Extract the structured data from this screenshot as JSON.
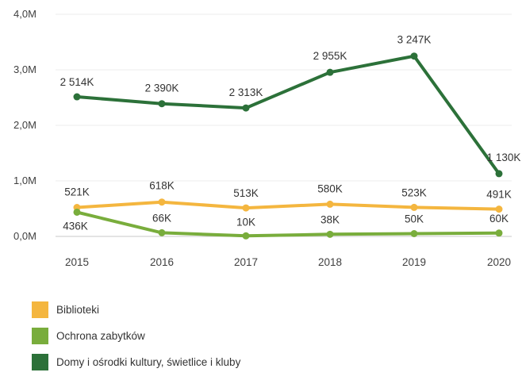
{
  "chart_data": {
    "type": "line",
    "categories": [
      "2015",
      "2016",
      "2017",
      "2018",
      "2019",
      "2020"
    ],
    "y_ticks": [
      "0,0M",
      "1,0M",
      "2,0M",
      "3,0M",
      "4,0M"
    ],
    "ylim": [
      0,
      4000000
    ],
    "grid": true,
    "legend_position": "bottom-left",
    "series": [
      {
        "name": "Biblioteki",
        "color": "#f4b63f",
        "values": [
          521000,
          618000,
          513000,
          580000,
          523000,
          491000
        ],
        "labels": [
          "521K",
          "618K",
          "513K",
          "580K",
          "523K",
          "491K"
        ]
      },
      {
        "name": "Ochrona zabytków",
        "color": "#79ad3c",
        "values": [
          436000,
          66000,
          10000,
          38000,
          50000,
          60000
        ],
        "labels": [
          "436K",
          "66K",
          "10K",
          "38K",
          "50K",
          "60K"
        ]
      },
      {
        "name": "Domy i ośrodki kultury, świetlice i kluby",
        "color": "#2c7139",
        "values": [
          2514000,
          2390000,
          2313000,
          2955000,
          3247000,
          1130000
        ],
        "labels": [
          "2 514K",
          "2 390K",
          "2 313K",
          "2 955K",
          "3 247K",
          "1 130K"
        ]
      }
    ]
  }
}
